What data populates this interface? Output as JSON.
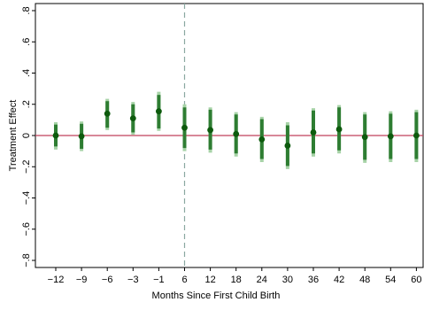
{
  "chart_data": {
    "type": "scatter",
    "subtype": "coefficient-plot",
    "title": "",
    "xlabel": "Months Since First Child Birth",
    "ylabel": "Treatment Effect",
    "categories": [
      "−12",
      "−9",
      "−6",
      "−3",
      "−1",
      "6",
      "12",
      "18",
      "24",
      "30",
      "36",
      "42",
      "48",
      "54",
      "60"
    ],
    "y_ticks": [
      {
        "value": 0.8,
        "label": ".8"
      },
      {
        "value": 0.6,
        "label": ".6"
      },
      {
        "value": 0.4,
        "label": ".4"
      },
      {
        "value": 0.2,
        "label": ".2"
      },
      {
        "value": 0,
        "label": "0"
      },
      {
        "value": -0.2,
        "label": "−.2"
      },
      {
        "value": -0.4,
        "label": "−.4"
      },
      {
        "value": -0.6,
        "label": "−.6"
      },
      {
        "value": -0.8,
        "label": "−.8"
      }
    ],
    "ylim": [
      -0.8,
      0.8
    ],
    "grid": false,
    "reference_line": {
      "y": 0,
      "color": "#c0415a"
    },
    "vertical_line": {
      "category": "6",
      "style": "dashed",
      "color": "#8aa8a0"
    },
    "series": [
      {
        "point_color": "#0d5a0d",
        "ci_color": "#2e7d32",
        "outer_ci_color": "#a7d3a7",
        "estimates": [
          0.0,
          -0.005,
          0.14,
          0.11,
          0.155,
          0.05,
          0.035,
          0.01,
          -0.025,
          -0.065,
          0.02,
          0.04,
          -0.01,
          -0.005,
          0.0
        ],
        "ci_inner": [
          [
            -0.07,
            0.07
          ],
          [
            -0.085,
            0.075
          ],
          [
            0.05,
            0.22
          ],
          [
            0.02,
            0.2
          ],
          [
            0.045,
            0.26
          ],
          [
            -0.08,
            0.18
          ],
          [
            -0.09,
            0.165
          ],
          [
            -0.115,
            0.135
          ],
          [
            -0.15,
            0.105
          ],
          [
            -0.195,
            0.065
          ],
          [
            -0.115,
            0.16
          ],
          [
            -0.095,
            0.18
          ],
          [
            -0.155,
            0.135
          ],
          [
            -0.15,
            0.14
          ],
          [
            -0.15,
            0.15
          ]
        ],
        "ci_outer": [
          [
            -0.09,
            0.085
          ],
          [
            -0.1,
            0.09
          ],
          [
            0.035,
            0.235
          ],
          [
            0.005,
            0.215
          ],
          [
            0.03,
            0.28
          ],
          [
            -0.1,
            0.2
          ],
          [
            -0.11,
            0.18
          ],
          [
            -0.135,
            0.15
          ],
          [
            -0.17,
            0.12
          ],
          [
            -0.215,
            0.085
          ],
          [
            -0.135,
            0.175
          ],
          [
            -0.115,
            0.195
          ],
          [
            -0.175,
            0.15
          ],
          [
            -0.17,
            0.155
          ],
          [
            -0.17,
            0.165
          ]
        ]
      }
    ]
  }
}
